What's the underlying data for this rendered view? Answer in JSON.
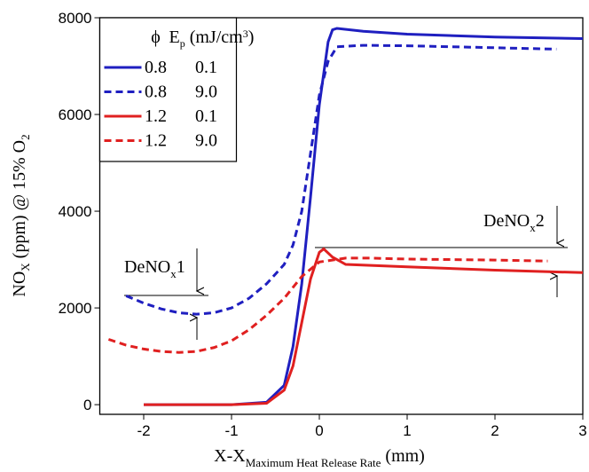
{
  "chart_data": {
    "type": "line",
    "x_label": {
      "text": "X-X",
      "subscript": "Maximum Heat Release Rate",
      "suffix": " (mm)"
    },
    "y_label": {
      "text": "NO",
      "subscript": "X",
      "middle": " (ppm) @ 15% O",
      "subscript2": "2"
    },
    "legend_header": {
      "phi": "ϕ",
      "ep": "E",
      "ep_subscript": "p",
      "ep_unit": " (mJ/cm",
      "ep_superscript": "3",
      "ep_close": ")"
    },
    "legend_position": "upper left",
    "xlim": [
      -2.5,
      3
    ],
    "xticks": [
      -2,
      -1,
      0,
      1,
      2,
      3
    ],
    "ylim": [
      -200,
      8000
    ],
    "yticks": [
      0,
      2000,
      4000,
      6000,
      8000
    ],
    "series": [
      {
        "phi": "0.8",
        "ep": "0.1",
        "color": "#1f1fc0",
        "dash": false,
        "x": [
          -2,
          -1,
          -0.6,
          -0.4,
          -0.3,
          -0.2,
          -0.1,
          0,
          0.1,
          0.15,
          0.2,
          0.5,
          1,
          2,
          3
        ],
        "values": [
          0,
          0,
          50,
          400,
          1200,
          2500,
          4300,
          6200,
          7500,
          7750,
          7780,
          7720,
          7660,
          7600,
          7570
        ]
      },
      {
        "phi": "0.8",
        "ep": "9.0",
        "color": "#1f1fc0",
        "dash": true,
        "x": [
          -2.2,
          -2,
          -1.8,
          -1.6,
          -1.4,
          -1.2,
          -1,
          -0.8,
          -0.6,
          -0.4,
          -0.3,
          -0.2,
          -0.1,
          0,
          0.1,
          0.2,
          0.5,
          1,
          2,
          2.7
        ],
        "values": [
          2250,
          2100,
          1980,
          1900,
          1870,
          1900,
          2000,
          2200,
          2500,
          2900,
          3300,
          4000,
          5200,
          6400,
          7100,
          7400,
          7430,
          7420,
          7380,
          7350
        ]
      },
      {
        "phi": "1.2",
        "ep": "0.1",
        "color": "#e02020",
        "dash": false,
        "x": [
          -2,
          -1,
          -0.6,
          -0.4,
          -0.3,
          -0.2,
          -0.1,
          0,
          0.05,
          0.15,
          0.3,
          1,
          2,
          3
        ],
        "values": [
          0,
          0,
          30,
          300,
          800,
          1700,
          2600,
          3150,
          3220,
          3050,
          2900,
          2850,
          2780,
          2730
        ]
      },
      {
        "phi": "1.2",
        "ep": "9.0",
        "color": "#e02020",
        "dash": true,
        "x": [
          -2.4,
          -2.2,
          -2,
          -1.8,
          -1.6,
          -1.4,
          -1.2,
          -1,
          -0.8,
          -0.6,
          -0.4,
          -0.2,
          0,
          0.3,
          0.6,
          1,
          2,
          2.6
        ],
        "values": [
          1350,
          1230,
          1150,
          1100,
          1080,
          1100,
          1180,
          1320,
          1550,
          1850,
          2200,
          2650,
          2950,
          3030,
          3030,
          3010,
          2990,
          2970
        ]
      }
    ],
    "annotations": [
      {
        "text": "DeNO",
        "subscript": "x",
        "suffix": "1"
      },
      {
        "text": "DeNO",
        "subscript": "x",
        "suffix": "2"
      }
    ]
  }
}
